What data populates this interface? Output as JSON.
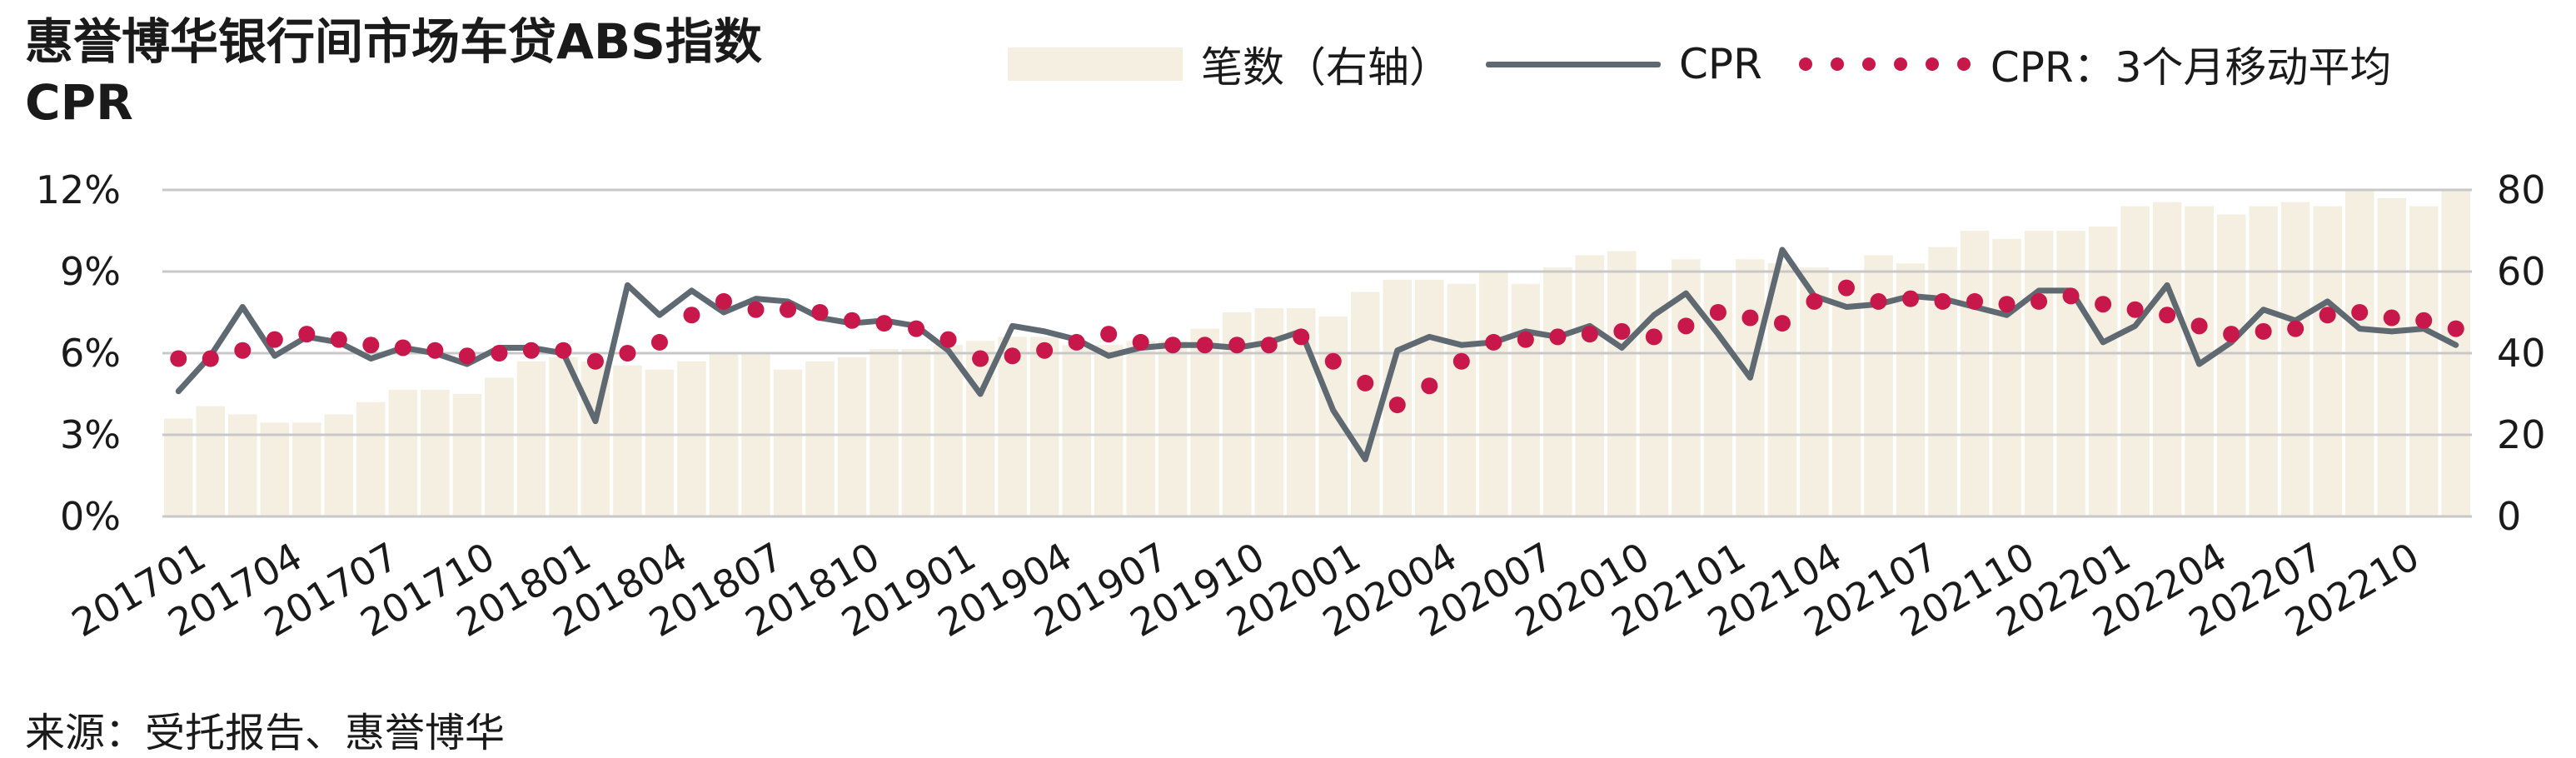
{
  "title": {
    "line1": "惠誉博华银行间市场车贷ABS指数",
    "line2": "CPR"
  },
  "legend": {
    "bars": "笔数（右轴）",
    "line": "CPR",
    "dots": "CPR：3个月移动平均"
  },
  "source": "来源：受托报告、惠誉博华",
  "colors": {
    "bar": "#f5efe1",
    "line": "#5f6971",
    "dots": "#c8174a",
    "grid": "#c8c8c8"
  },
  "chart_data": {
    "type": "bar+line",
    "x": [
      "201701",
      "201702",
      "201703",
      "201704",
      "201705",
      "201706",
      "201707",
      "201708",
      "201709",
      "201710",
      "201711",
      "201712",
      "201801",
      "201802",
      "201803",
      "201804",
      "201805",
      "201806",
      "201807",
      "201808",
      "201809",
      "201810",
      "201811",
      "201812",
      "201901",
      "201902",
      "201903",
      "201904",
      "201905",
      "201906",
      "201907",
      "201908",
      "201909",
      "201910",
      "201911",
      "201912",
      "202001",
      "202002",
      "202003",
      "202004",
      "202005",
      "202006",
      "202007",
      "202008",
      "202009",
      "202010",
      "202011",
      "202012",
      "202101",
      "202102",
      "202103",
      "202104",
      "202105",
      "202106",
      "202107",
      "202108",
      "202109",
      "202110",
      "202111",
      "202112",
      "202201",
      "202202",
      "202203",
      "202204",
      "202205",
      "202206",
      "202207",
      "202208",
      "202209",
      "202210",
      "202211",
      "202212"
    ],
    "x_tick_labels": [
      "201701",
      "201704",
      "201707",
      "201710",
      "201801",
      "201804",
      "201807",
      "201810",
      "201901",
      "201904",
      "201907",
      "201910",
      "202001",
      "202004",
      "202007",
      "202010",
      "202101",
      "202104",
      "202107",
      "202110",
      "202201",
      "202204",
      "202207",
      "202210"
    ],
    "y_left": {
      "label": "",
      "ticks": [
        "0%",
        "3%",
        "6%",
        "9%",
        "12%"
      ],
      "range": [
        0,
        12
      ],
      "unit": "%"
    },
    "y_right": {
      "label": "",
      "ticks": [
        "0",
        "20",
        "40",
        "60",
        "80"
      ],
      "range": [
        0,
        80
      ]
    },
    "series": [
      {
        "name": "笔数（右轴）",
        "type": "bar",
        "axis": "right",
        "values": [
          24,
          27,
          25,
          23,
          23,
          25,
          28,
          31,
          31,
          30,
          34,
          38,
          39,
          38,
          37,
          36,
          38,
          40,
          40,
          36,
          38,
          39,
          41,
          41,
          42,
          43,
          44,
          44,
          42,
          42,
          43,
          43,
          46,
          50,
          51,
          51,
          49,
          55,
          58,
          58,
          57,
          60,
          57,
          61,
          64,
          65,
          60,
          63,
          60,
          63,
          62,
          61,
          60,
          64,
          62,
          66,
          70,
          68,
          70,
          70,
          71,
          76,
          77,
          76,
          74,
          76,
          77,
          76,
          80,
          78,
          76,
          80
        ]
      },
      {
        "name": "CPR",
        "type": "line",
        "axis": "left",
        "values": [
          4.6,
          5.9,
          7.7,
          5.9,
          6.6,
          6.4,
          5.8,
          6.2,
          6.0,
          5.6,
          6.2,
          6.2,
          6.0,
          3.5,
          8.5,
          7.4,
          8.3,
          7.5,
          8.0,
          7.9,
          7.3,
          7.1,
          7.2,
          7.0,
          6.1,
          4.5,
          7.0,
          6.8,
          6.5,
          5.9,
          6.2,
          6.3,
          6.3,
          6.2,
          6.4,
          6.8,
          3.9,
          2.1,
          6.1,
          6.6,
          6.3,
          6.4,
          6.8,
          6.6,
          7.0,
          6.2,
          7.4,
          8.2,
          6.7,
          5.1,
          9.8,
          8.1,
          7.7,
          7.8,
          8.1,
          8.0,
          7.7,
          7.4,
          8.3,
          8.3,
          6.4,
          7.0,
          8.5,
          5.6,
          6.4,
          7.6,
          7.2,
          7.9,
          6.9,
          6.8,
          6.9,
          6.3
        ]
      },
      {
        "name": "CPR：3个月移动平均",
        "type": "dots",
        "axis": "left",
        "values": [
          5.8,
          5.8,
          6.1,
          6.5,
          6.7,
          6.5,
          6.3,
          6.2,
          6.1,
          5.9,
          6.0,
          6.1,
          6.1,
          5.7,
          6.0,
          6.4,
          7.4,
          7.9,
          7.6,
          7.6,
          7.5,
          7.2,
          7.1,
          6.9,
          6.5,
          5.8,
          5.9,
          6.1,
          6.4,
          6.7,
          6.4,
          6.3,
          6.3,
          6.3,
          6.3,
          6.6,
          5.7,
          4.9,
          4.1,
          4.8,
          5.7,
          6.4,
          6.5,
          6.6,
          6.7,
          6.8,
          6.6,
          7.0,
          7.5,
          7.3,
          7.1,
          7.9,
          8.4,
          7.9,
          8.0,
          7.9,
          7.9,
          7.8,
          7.9,
          8.1,
          7.8,
          7.6,
          7.4,
          7.0,
          6.7,
          6.8,
          6.9,
          7.4,
          7.5,
          7.3,
          7.2,
          6.9
        ]
      }
    ],
    "grid": "horizontal",
    "legend_position": "top"
  }
}
